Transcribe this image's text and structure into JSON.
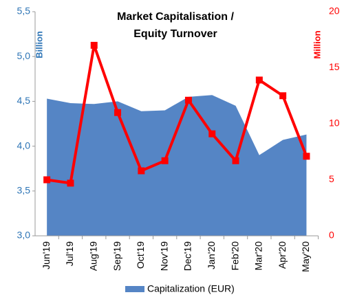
{
  "chart_data": {
    "type": "area_line",
    "title": [
      "Market Capitalisation /",
      "Equity Turnover"
    ],
    "y_label": "Billion",
    "y2_label": "Million",
    "categories": [
      "Jun'19",
      "Jul'19",
      "Aug'19",
      "Sep'19",
      "Oct'19",
      "Nov'19",
      "Dec'19",
      "Jan'20",
      "Feb'20",
      "Mar'20",
      "Apr'20",
      "May'20"
    ],
    "series": [
      {
        "name": "Capitalization (EUR)",
        "type": "area",
        "color": "#5585c5",
        "values": [
          4.53,
          4.48,
          4.47,
          4.5,
          4.39,
          4.4,
          4.55,
          4.57,
          4.45,
          3.9,
          4.07,
          4.13
        ]
      },
      {
        "type": "line",
        "axis": "y2",
        "color": "#ff0000",
        "values": [
          5.0,
          4.7,
          17.0,
          11.0,
          5.8,
          6.7,
          12.1,
          9.1,
          6.7,
          13.9,
          12.5,
          7.1
        ]
      }
    ],
    "ylim": [
      3.0,
      5.5
    ],
    "yticks": [
      {
        "value": 3.0,
        "label": "3,0"
      },
      {
        "value": 3.5,
        "label": "3,5"
      },
      {
        "value": 4.0,
        "label": "4,0"
      },
      {
        "value": 4.5,
        "label": "4,5"
      },
      {
        "value": 5.0,
        "label": "5,0"
      },
      {
        "value": 5.5,
        "label": "5,5"
      }
    ],
    "y2lim": [
      0,
      20
    ],
    "y2ticks": [
      0,
      5,
      10,
      15,
      20
    ],
    "legend": "bottom"
  }
}
